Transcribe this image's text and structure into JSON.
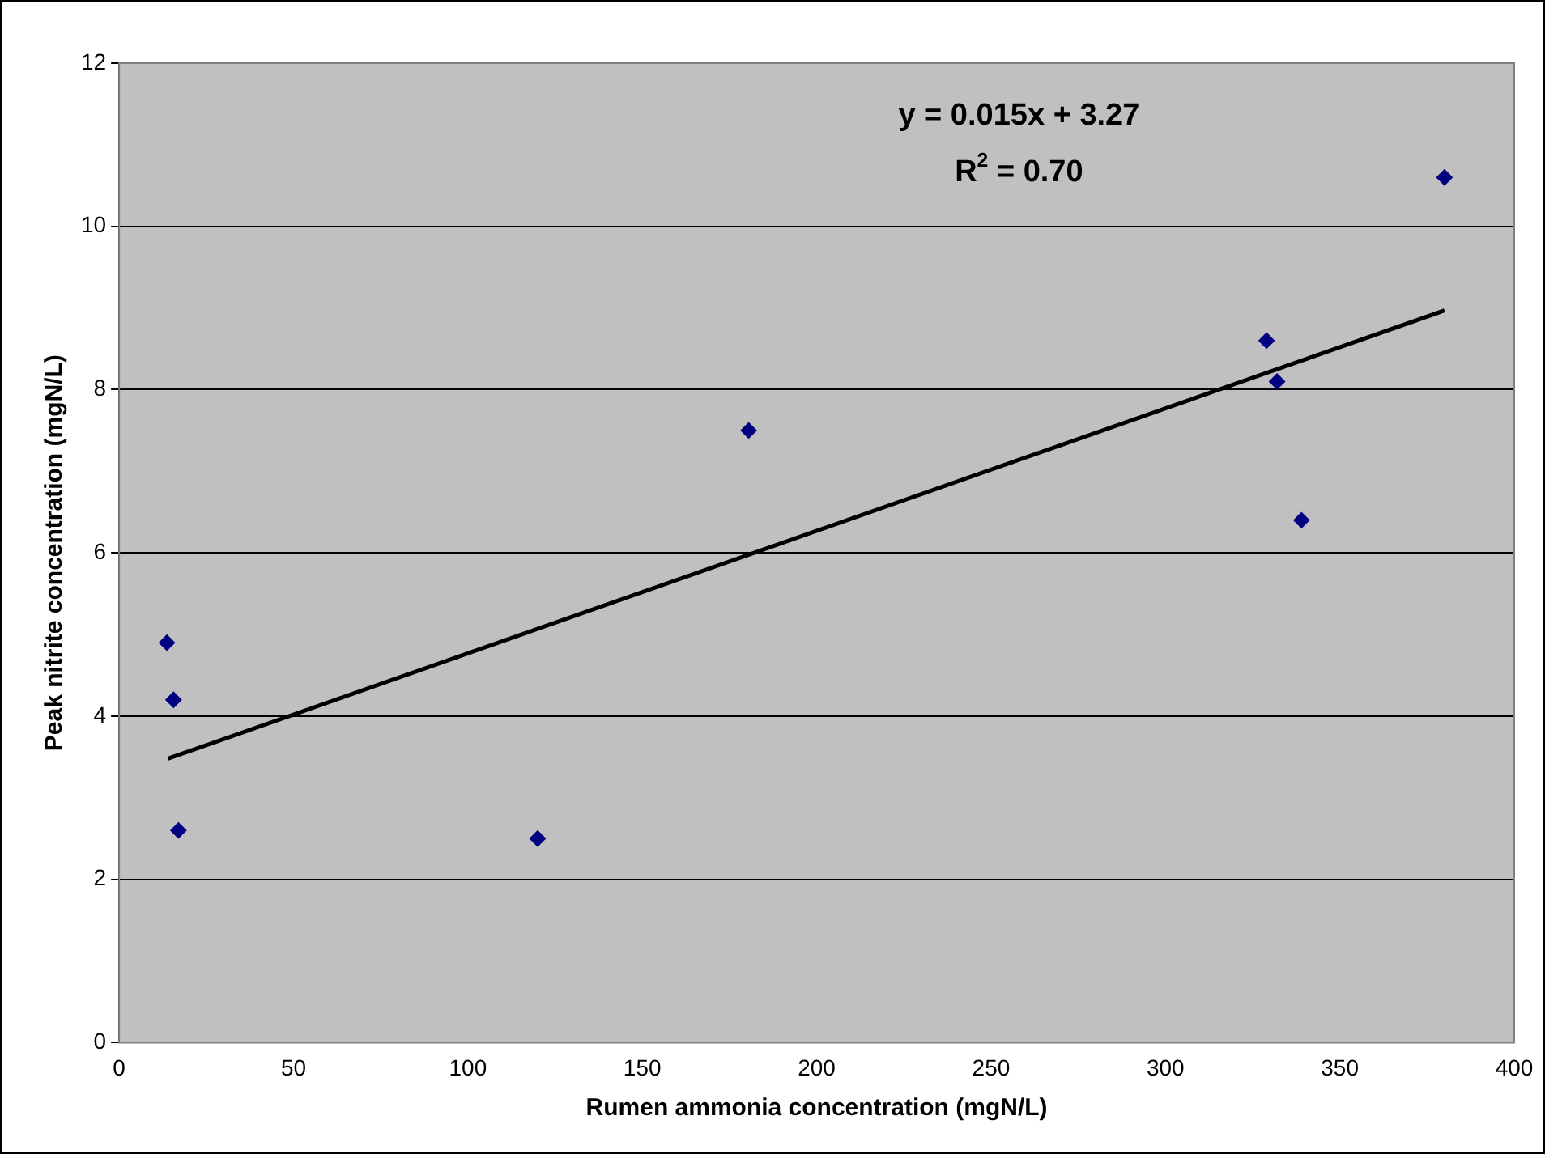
{
  "chart_data": {
    "type": "scatter",
    "xlabel": "Rumen ammonia concentration (mgN/L)",
    "ylabel": "Peak nitrite concentration (mgN/L)",
    "series": [
      {
        "type": "scatter",
        "color": "#000080",
        "marker": "diamond",
        "x": [
          13.7,
          15.6,
          17,
          120,
          180.5,
          329,
          332,
          339,
          380
        ],
        "values": [
          4.9,
          4.2,
          2.6,
          2.5,
          7.5,
          8.6,
          8.1,
          6.4,
          10.6
        ]
      },
      {
        "type": "line",
        "color": "#000000",
        "marker": "none",
        "line_style": "solid",
        "x": [
          14,
          380
        ],
        "values": [
          3.48,
          8.97
        ]
      }
    ],
    "xlim": [
      0,
      400
    ],
    "xticks": [
      0,
      50,
      100,
      150,
      200,
      250,
      300,
      350,
      400
    ],
    "ylim": [
      0,
      12
    ],
    "yticks": [
      0,
      2,
      4,
      6,
      8,
      10,
      12
    ],
    "grid": "y",
    "legend": false,
    "annotations": [
      "y = 0.015x + 3.27",
      "R$^{2}$ = 0.70"
    ]
  }
}
